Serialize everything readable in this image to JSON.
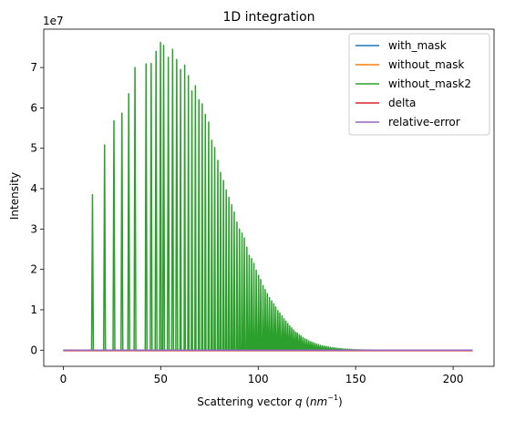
{
  "chart_data": {
    "type": "line",
    "title": "1D integration",
    "xlabel_prefix": "Scattering vector ",
    "xlabel_var": "q",
    "xlabel_open": " (",
    "xlabel_unit": "nm",
    "xlabel_exp": "−1",
    "xlabel_close": ")",
    "ylabel": "Intensity",
    "y_offset_label": "1e7",
    "xlim": [
      -10,
      221
    ],
    "ylim": [
      -0.4,
      7.95
    ],
    "y_units": 10000000,
    "xticks": [
      0,
      50,
      100,
      150,
      200
    ],
    "yticks": [
      0,
      1,
      2,
      3,
      4,
      5,
      6,
      7
    ],
    "legend_position": "top-right",
    "series": [
      {
        "name": "with_mask",
        "color": "#1f77b4"
      },
      {
        "name": "without_mask",
        "color": "#ff7f0e"
      },
      {
        "name": "without_mask2",
        "color": "#2ca02c"
      },
      {
        "name": "delta",
        "color": "#d62728"
      },
      {
        "name": "relative-error",
        "color": "#9467bd"
      }
    ],
    "peaks": [
      [
        15.0,
        3.85
      ],
      [
        21.2,
        5.08
      ],
      [
        26.0,
        5.68
      ],
      [
        30.1,
        5.87
      ],
      [
        33.6,
        6.35
      ],
      [
        36.8,
        7.0
      ],
      [
        42.5,
        7.09
      ],
      [
        45.1,
        7.1
      ],
      [
        47.6,
        7.4
      ],
      [
        49.9,
        7.62
      ],
      [
        51.5,
        7.55
      ],
      [
        53.9,
        7.25
      ],
      [
        56.1,
        7.45
      ],
      [
        58.2,
        7.2
      ],
      [
        60.2,
        6.95
      ],
      [
        62.3,
        7.06
      ],
      [
        64.2,
        6.8
      ],
      [
        66.0,
        6.42
      ],
      [
        67.8,
        6.55
      ],
      [
        69.6,
        6.2
      ],
      [
        71.3,
        6.1
      ],
      [
        72.9,
        5.84
      ],
      [
        74.6,
        5.65
      ],
      [
        76.2,
        5.2
      ],
      [
        77.7,
        5.02
      ],
      [
        79.3,
        4.7
      ],
      [
        80.7,
        4.4
      ],
      [
        82.2,
        4.2
      ],
      [
        83.6,
        3.97
      ],
      [
        85.0,
        3.78
      ],
      [
        86.4,
        3.6
      ],
      [
        87.7,
        3.42
      ],
      [
        89.1,
        3.17
      ],
      [
        90.4,
        3.0
      ],
      [
        91.7,
        2.9
      ],
      [
        92.9,
        2.78
      ],
      [
        94.2,
        2.55
      ],
      [
        95.4,
        2.35
      ],
      [
        96.6,
        2.27
      ],
      [
        97.8,
        2.15
      ],
      [
        99.0,
        1.98
      ],
      [
        100.2,
        1.85
      ],
      [
        101.3,
        1.75
      ],
      [
        102.5,
        1.6
      ],
      [
        103.6,
        1.5
      ],
      [
        104.7,
        1.4
      ],
      [
        105.8,
        1.3
      ],
      [
        106.9,
        1.22
      ],
      [
        108.0,
        1.15
      ],
      [
        109.0,
        1.07
      ],
      [
        110.1,
        0.98
      ],
      [
        111.1,
        0.92
      ],
      [
        112.2,
        0.85
      ],
      [
        113.2,
        0.78
      ],
      [
        114.2,
        0.72
      ],
      [
        115.2,
        0.66
      ],
      [
        116.2,
        0.6
      ],
      [
        117.2,
        0.55
      ],
      [
        118.2,
        0.5
      ],
      [
        119.2,
        0.45
      ],
      [
        120.1,
        0.42
      ],
      [
        121.1,
        0.38
      ],
      [
        122.0,
        0.35
      ],
      [
        123.0,
        0.31
      ],
      [
        124.0,
        0.28
      ],
      [
        125.0,
        0.26
      ],
      [
        126.0,
        0.23
      ],
      [
        127.0,
        0.21
      ],
      [
        128.0,
        0.19
      ],
      [
        129.0,
        0.17
      ],
      [
        130.0,
        0.15
      ],
      [
        131.0,
        0.14
      ],
      [
        132.0,
        0.12
      ],
      [
        133.0,
        0.11
      ],
      [
        134.0,
        0.1
      ],
      [
        135.0,
        0.09
      ],
      [
        136.0,
        0.08
      ],
      [
        137.0,
        0.07
      ],
      [
        138.0,
        0.065
      ],
      [
        139.0,
        0.06
      ],
      [
        140.0,
        0.05
      ],
      [
        141.0,
        0.045
      ],
      [
        142.0,
        0.04
      ],
      [
        143.0,
        0.035
      ],
      [
        144.0,
        0.03
      ],
      [
        145.0,
        0.027
      ],
      [
        146.0,
        0.024
      ],
      [
        147.0,
        0.021
      ],
      [
        148.0,
        0.018
      ],
      [
        149.0,
        0.015
      ],
      [
        150.0,
        0.013
      ],
      [
        151.0,
        0.011
      ],
      [
        152.0,
        0.009
      ],
      [
        153.0,
        0.008
      ],
      [
        154.0,
        0.007
      ],
      [
        155.0,
        0.006
      ],
      [
        156.0,
        0.005
      ],
      [
        157.0,
        0.004
      ]
    ],
    "x_range": [
      0,
      210
    ],
    "baseline_value": 0
  }
}
